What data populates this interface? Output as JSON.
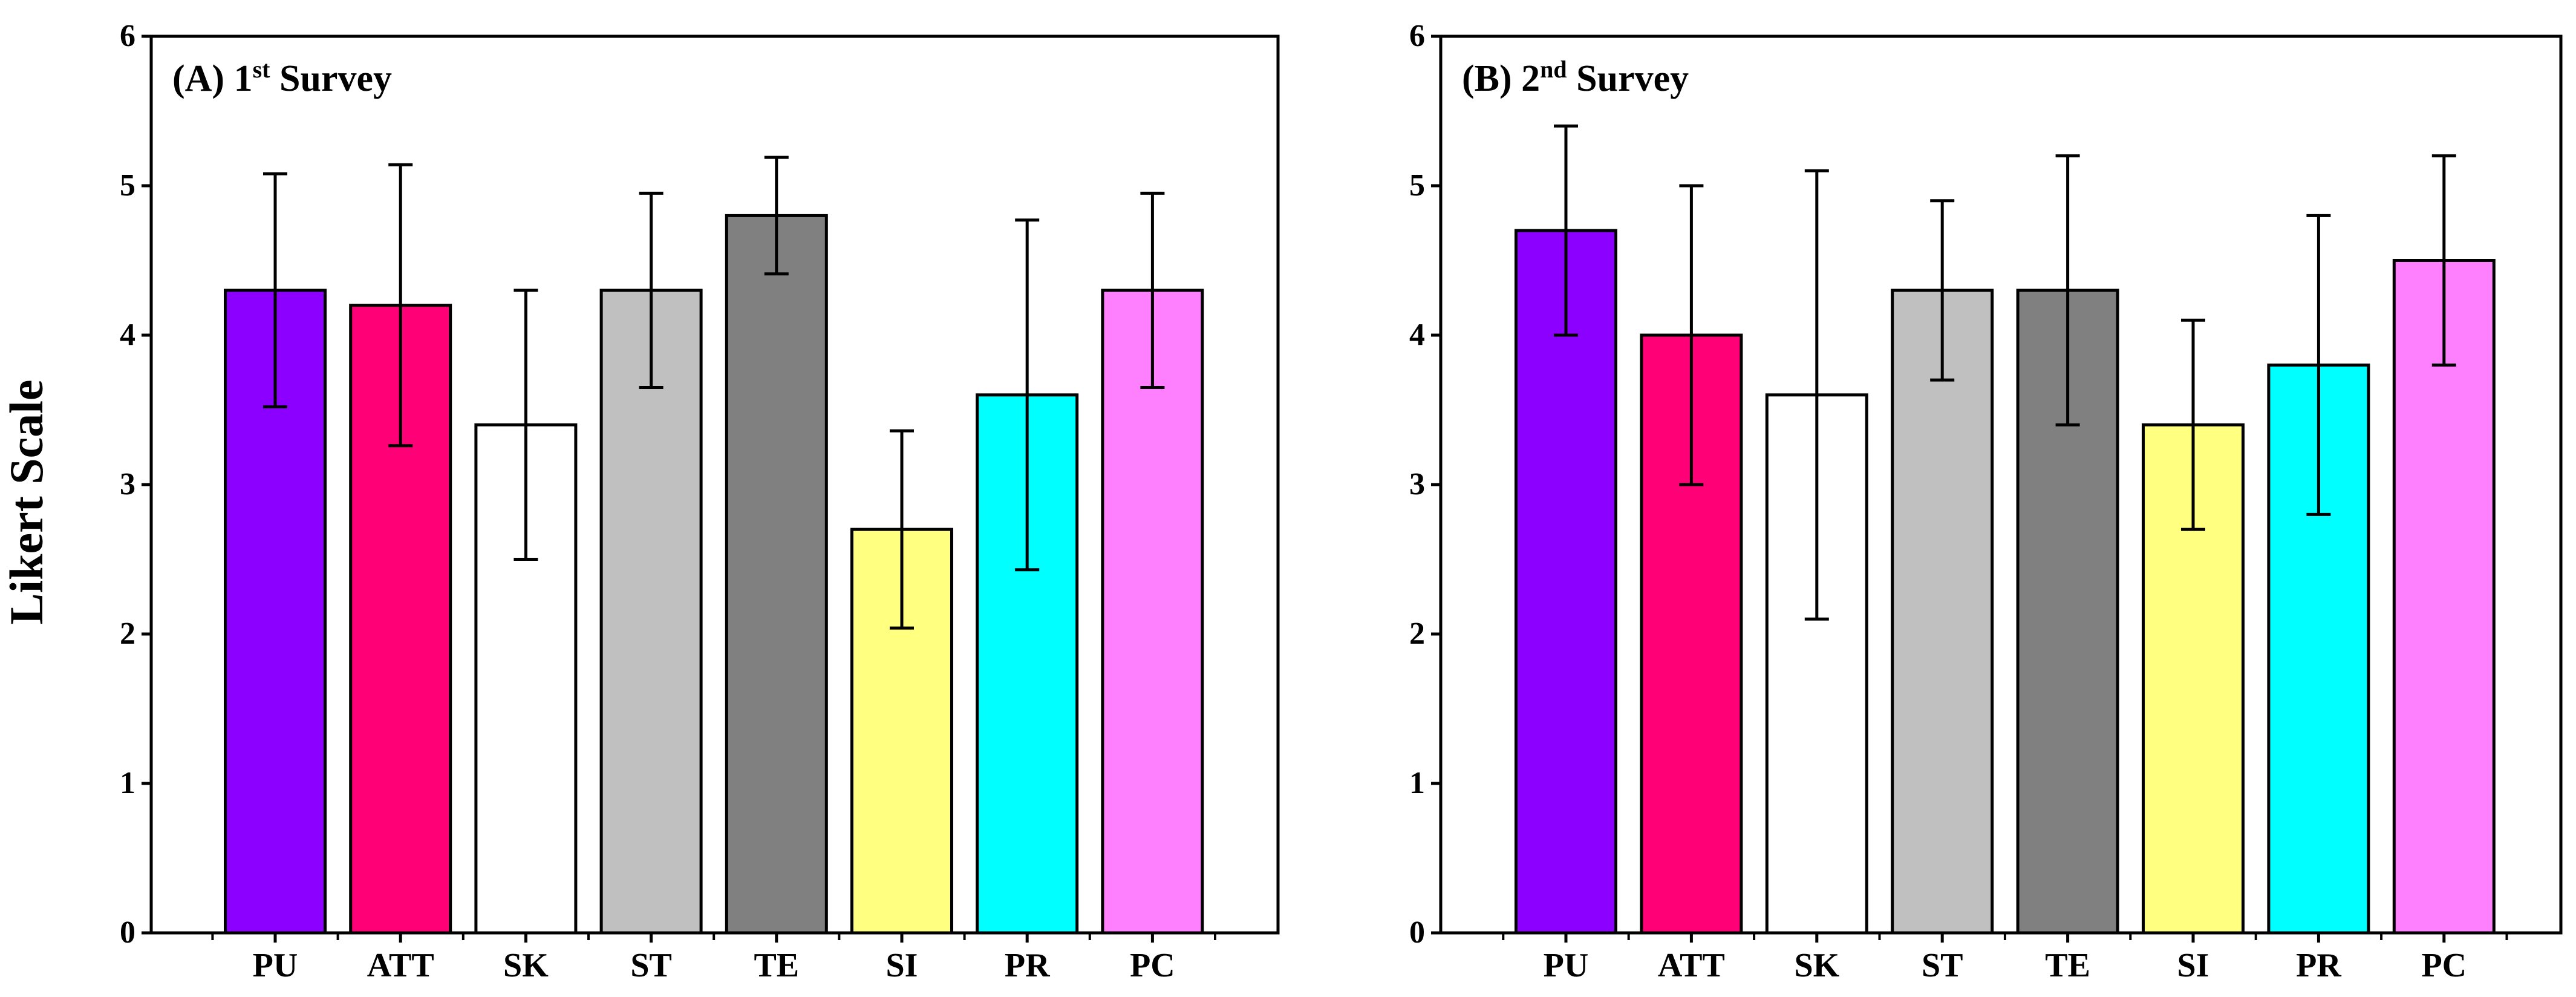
{
  "figure": {
    "ylabel": "Likert Scale"
  },
  "chart_data": [
    {
      "type": "bar",
      "title_main": "(A) 1",
      "title_sup": "st",
      "title_rest": " Survey",
      "categories": [
        "PU",
        "ATT",
        "SK",
        "ST",
        "TE",
        "SI",
        "PR",
        "PC"
      ],
      "values": [
        4.3,
        4.2,
        3.4,
        4.3,
        4.8,
        2.7,
        3.6,
        4.3
      ],
      "errors": [
        0.78,
        0.94,
        0.9,
        0.65,
        0.39,
        0.66,
        1.17,
        0.65
      ],
      "colors": [
        "#8B00FF",
        "#FF0077",
        "#FFFFFF",
        "#C0C0C0",
        "#808080",
        "#FFFF80",
        "#00FFFF",
        "#FF80FF"
      ],
      "ylim": [
        0,
        6
      ],
      "yticks": [
        0,
        1,
        2,
        3,
        4,
        5,
        6
      ],
      "ylabel": "Likert Scale",
      "xlabel": ""
    },
    {
      "type": "bar",
      "title_main": "(B) 2",
      "title_sup": "nd",
      "title_rest": " Survey",
      "categories": [
        "PU",
        "ATT",
        "SK",
        "ST",
        "TE",
        "SI",
        "PR",
        "PC"
      ],
      "values": [
        4.7,
        4.0,
        3.6,
        4.3,
        4.3,
        3.4,
        3.8,
        4.5
      ],
      "errors": [
        0.7,
        1.0,
        1.5,
        0.6,
        0.9,
        0.7,
        1.0,
        0.7
      ],
      "colors": [
        "#8B00FF",
        "#FF0077",
        "#FFFFFF",
        "#C0C0C0",
        "#808080",
        "#FFFF80",
        "#00FFFF",
        "#FF80FF"
      ],
      "ylim": [
        0,
        6
      ],
      "yticks": [
        0,
        1,
        2,
        3,
        4,
        5,
        6
      ],
      "ylabel": "",
      "xlabel": ""
    }
  ]
}
